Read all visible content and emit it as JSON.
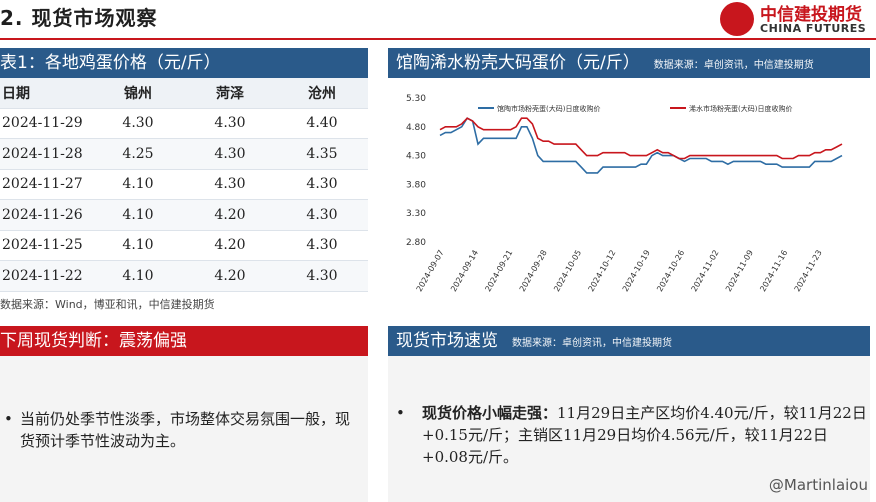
{
  "header": {
    "page_title": "2. 现货市场观察",
    "logo_cn": "中信建投期货",
    "logo_en": "CHINA FUTURES"
  },
  "table_panel": {
    "title": "表1：各地鸡蛋价格（元/斤）",
    "columns": [
      "日期",
      "锦州",
      "菏泽",
      "沧州"
    ],
    "rows": [
      [
        "2024-11-29",
        "4.30",
        "4.30",
        "4.40"
      ],
      [
        "2024-11-28",
        "4.25",
        "4.30",
        "4.35"
      ],
      [
        "2024-11-27",
        "4.10",
        "4.30",
        "4.30"
      ],
      [
        "2024-11-26",
        "4.10",
        "4.20",
        "4.30"
      ],
      [
        "2024-11-25",
        "4.10",
        "4.20",
        "4.30"
      ],
      [
        "2024-11-22",
        "4.10",
        "4.20",
        "4.30"
      ]
    ],
    "source": "数据来源：Wind，博亚和讯，中信建投期货"
  },
  "chart_panel": {
    "title": "馆陶浠水粉壳大码蛋价（元/斤）",
    "source": "数据来源：卓创资讯，中信建投期货"
  },
  "chart_data": {
    "type": "line",
    "title": "馆陶浠水粉壳大码蛋价（元/斤）",
    "xlabel": "",
    "ylabel": "",
    "ylim": [
      2.8,
      5.3
    ],
    "yticks": [
      "5.30",
      "4.80",
      "4.30",
      "3.80",
      "3.30",
      "2.80"
    ],
    "x_tick_labels": [
      "2024-09-07",
      "2024-09-14",
      "2024-09-21",
      "2024-09-28",
      "2024-10-05",
      "2024-10-12",
      "2024-10-19",
      "2024-10-26",
      "2024-11-02",
      "2024-11-09",
      "2024-11-16",
      "2024-11-23"
    ],
    "legend_position": "top",
    "series": [
      {
        "name": "馆陶市场粉壳蛋(大码)日度收购价",
        "color": "#2e6da4",
        "values": [
          4.65,
          4.7,
          4.7,
          4.75,
          4.8,
          4.95,
          4.9,
          4.5,
          4.6,
          4.6,
          4.6,
          4.6,
          4.6,
          4.6,
          4.6,
          4.8,
          4.8,
          4.6,
          4.3,
          4.2,
          4.2,
          4.2,
          4.2,
          4.2,
          4.2,
          4.2,
          4.1,
          4.0,
          4.0,
          4.0,
          4.1,
          4.1,
          4.1,
          4.1,
          4.1,
          4.1,
          4.1,
          4.15,
          4.15,
          4.3,
          4.35,
          4.3,
          4.3,
          4.3,
          4.25,
          4.2,
          4.25,
          4.25,
          4.25,
          4.25,
          4.2,
          4.2,
          4.2,
          4.15,
          4.2,
          4.2,
          4.2,
          4.2,
          4.2,
          4.2,
          4.15,
          4.15,
          4.15,
          4.1,
          4.1,
          4.1,
          4.1,
          4.1,
          4.1,
          4.2,
          4.2,
          4.2,
          4.2,
          4.25,
          4.3
        ]
      },
      {
        "name": "浠水市场粉壳蛋(大码)日度收购价",
        "color": "#c8161d",
        "values": [
          4.75,
          4.8,
          4.8,
          4.8,
          4.85,
          4.95,
          4.9,
          4.8,
          4.75,
          4.75,
          4.75,
          4.75,
          4.75,
          4.75,
          4.8,
          4.95,
          4.95,
          4.85,
          4.6,
          4.55,
          4.55,
          4.5,
          4.5,
          4.5,
          4.5,
          4.5,
          4.4,
          4.3,
          4.3,
          4.3,
          4.35,
          4.35,
          4.35,
          4.35,
          4.35,
          4.3,
          4.3,
          4.3,
          4.3,
          4.35,
          4.4,
          4.35,
          4.35,
          4.3,
          4.25,
          4.25,
          4.3,
          4.3,
          4.3,
          4.3,
          4.3,
          4.3,
          4.3,
          4.3,
          4.3,
          4.3,
          4.3,
          4.3,
          4.3,
          4.3,
          4.3,
          4.3,
          4.3,
          4.25,
          4.25,
          4.25,
          4.3,
          4.3,
          4.3,
          4.35,
          4.35,
          4.4,
          4.4,
          4.45,
          4.5
        ]
      }
    ]
  },
  "judgement_panel": {
    "title": "下周现货判断：震荡偏强",
    "bullet": "当前仍处季节性淡季，市场整体交易氛围一般，现货预计季节性波动为主。"
  },
  "quick_panel": {
    "title": "现货市场速览",
    "source": "数据来源：卓创资讯，中信建投期货",
    "bullet_lead": "现货价格小幅走强：",
    "bullet_body": "11月29日主产区均价4.40元/斤，较11月22日+0.15元/斤；主销区11月29日均价4.56元/斤，较11月22日+0.08元/斤。"
  },
  "watermark": "@Martinlaiou",
  "colors": {
    "accent_blue": "#2a5a8a",
    "accent_red": "#c8161d"
  }
}
